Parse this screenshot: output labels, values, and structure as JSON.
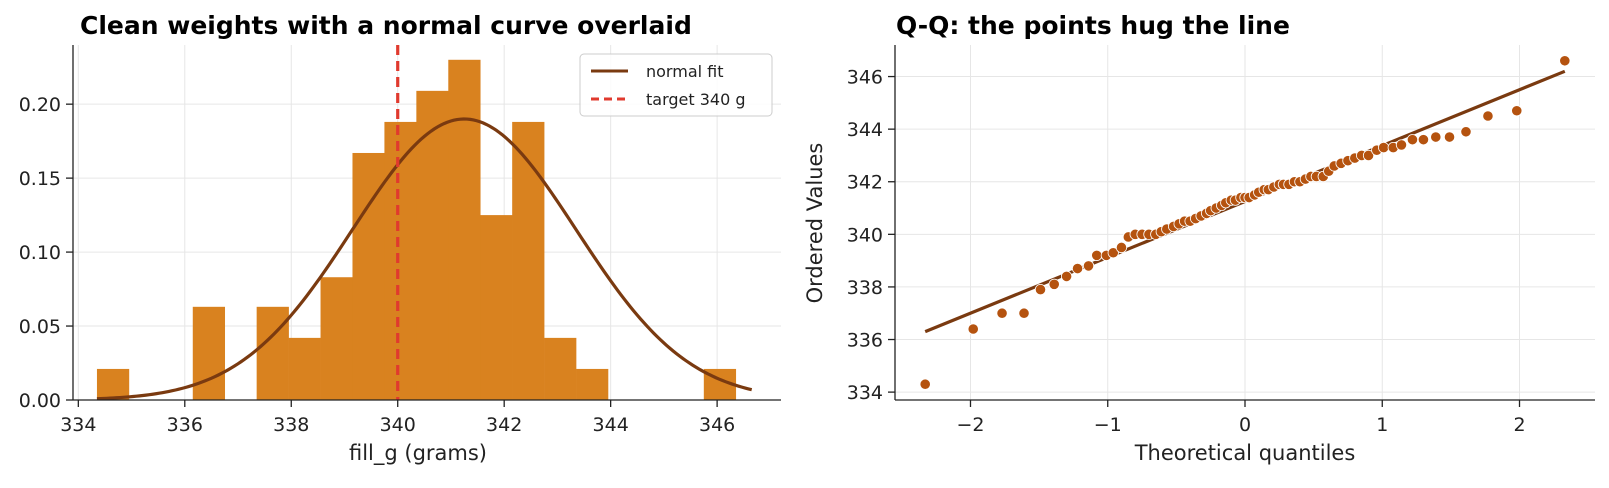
{
  "chart_data": [
    {
      "type": "bar",
      "title": "Clean weights with a normal curve overlaid",
      "xlabel": "fill_g (grams)",
      "ylabel": "",
      "xlim": [
        333.9,
        347.2
      ],
      "ylim": [
        0,
        0.24
      ],
      "xticks": [
        "334",
        "336",
        "338",
        "340",
        "342",
        "344",
        "346"
      ],
      "yticks": [
        "0.00",
        "0.05",
        "0.10",
        "0.15",
        "0.20"
      ],
      "grid": true,
      "legend_position": "top-right",
      "bar_color": "#d9821f",
      "bins": [
        {
          "x0": 334.35,
          "x1": 334.95,
          "value": 0.021
        },
        {
          "x0": 334.95,
          "x1": 335.55,
          "value": 0.0
        },
        {
          "x0": 335.55,
          "x1": 336.15,
          "value": 0.0
        },
        {
          "x0": 336.15,
          "x1": 336.75,
          "value": 0.063
        },
        {
          "x0": 336.75,
          "x1": 337.35,
          "value": 0.0
        },
        {
          "x0": 337.35,
          "x1": 337.95,
          "value": 0.063
        },
        {
          "x0": 337.95,
          "x1": 338.55,
          "value": 0.042
        },
        {
          "x0": 338.55,
          "x1": 339.15,
          "value": 0.083
        },
        {
          "x0": 339.15,
          "x1": 339.75,
          "value": 0.167
        },
        {
          "x0": 339.75,
          "x1": 340.35,
          "value": 0.188
        },
        {
          "x0": 340.35,
          "x1": 340.95,
          "value": 0.209
        },
        {
          "x0": 340.95,
          "x1": 341.55,
          "value": 0.23
        },
        {
          "x0": 341.55,
          "x1": 342.15,
          "value": 0.125
        },
        {
          "x0": 342.15,
          "x1": 342.75,
          "value": 0.188
        },
        {
          "x0": 342.75,
          "x1": 343.35,
          "value": 0.042
        },
        {
          "x0": 343.35,
          "x1": 343.95,
          "value": 0.021
        },
        {
          "x0": 343.95,
          "x1": 344.55,
          "value": 0.0
        },
        {
          "x0": 344.55,
          "x1": 345.15,
          "value": 0.0
        },
        {
          "x0": 345.15,
          "x1": 345.75,
          "value": 0.0
        },
        {
          "x0": 345.75,
          "x1": 346.35,
          "value": 0.021
        }
      ],
      "series": [
        {
          "name": "normal fit",
          "kind": "curve",
          "mean": 341.25,
          "sd": 2.1,
          "x_range": [
            334.35,
            346.65
          ],
          "color": "#7a3a10"
        },
        {
          "name": "target 340 g",
          "kind": "vline",
          "x": 340,
          "color": "#e03a2e"
        }
      ]
    },
    {
      "type": "scatter",
      "title": "Q-Q: the points hug the line",
      "xlabel": "Theoretical quantiles",
      "ylabel": "Ordered Values",
      "xlim": [
        -2.55,
        2.55
      ],
      "ylim": [
        333.7,
        347.2
      ],
      "xticks": [
        "−2",
        "−1",
        "0",
        "1",
        "2"
      ],
      "yticks": [
        "334",
        "336",
        "338",
        "340",
        "342",
        "344",
        "346"
      ],
      "grid": true,
      "point_color": "#b5530f",
      "line": {
        "x": [
          -2.33,
          2.33
        ],
        "y": [
          336.3,
          346.2
        ],
        "color": "#7a3a10"
      },
      "points": [
        [
          -2.33,
          334.3
        ],
        [
          -1.98,
          336.4
        ],
        [
          -1.77,
          337.0
        ],
        [
          -1.61,
          337.0
        ],
        [
          -1.49,
          337.9
        ],
        [
          -1.39,
          338.1
        ],
        [
          -1.3,
          338.4
        ],
        [
          -1.22,
          338.7
        ],
        [
          -1.14,
          338.8
        ],
        [
          -1.08,
          339.2
        ],
        [
          -1.01,
          339.2
        ],
        [
          -0.96,
          339.3
        ],
        [
          -0.9,
          339.5
        ],
        [
          -0.85,
          339.9
        ],
        [
          -0.8,
          340.0
        ],
        [
          -0.75,
          340.0
        ],
        [
          -0.7,
          340.0
        ],
        [
          -0.65,
          340.0
        ],
        [
          -0.61,
          340.1
        ],
        [
          -0.57,
          340.2
        ],
        [
          -0.52,
          340.3
        ],
        [
          -0.48,
          340.4
        ],
        [
          -0.44,
          340.5
        ],
        [
          -0.4,
          340.5
        ],
        [
          -0.36,
          340.6
        ],
        [
          -0.32,
          340.7
        ],
        [
          -0.28,
          340.8
        ],
        [
          -0.25,
          340.9
        ],
        [
          -0.21,
          341.0
        ],
        [
          -0.17,
          341.1
        ],
        [
          -0.14,
          341.2
        ],
        [
          -0.1,
          341.3
        ],
        [
          -0.07,
          341.3
        ],
        [
          -0.03,
          341.4
        ],
        [
          0.0,
          341.4
        ],
        [
          0.03,
          341.4
        ],
        [
          0.07,
          341.5
        ],
        [
          0.1,
          341.6
        ],
        [
          0.14,
          341.7
        ],
        [
          0.17,
          341.7
        ],
        [
          0.21,
          341.8
        ],
        [
          0.25,
          341.9
        ],
        [
          0.28,
          341.9
        ],
        [
          0.32,
          341.9
        ],
        [
          0.36,
          342.0
        ],
        [
          0.4,
          342.0
        ],
        [
          0.44,
          342.1
        ],
        [
          0.48,
          342.2
        ],
        [
          0.52,
          342.2
        ],
        [
          0.57,
          342.2
        ],
        [
          0.61,
          342.4
        ],
        [
          0.65,
          342.6
        ],
        [
          0.7,
          342.7
        ],
        [
          0.75,
          342.8
        ],
        [
          0.8,
          342.9
        ],
        [
          0.85,
          343.0
        ],
        [
          0.9,
          343.0
        ],
        [
          0.96,
          343.2
        ],
        [
          1.01,
          343.3
        ],
        [
          1.08,
          343.3
        ],
        [
          1.14,
          343.4
        ],
        [
          1.22,
          343.6
        ],
        [
          1.3,
          343.6
        ],
        [
          1.39,
          343.7
        ],
        [
          1.49,
          343.7
        ],
        [
          1.61,
          343.9
        ],
        [
          1.77,
          344.5
        ],
        [
          1.98,
          344.7
        ],
        [
          2.33,
          346.6
        ]
      ]
    }
  ]
}
